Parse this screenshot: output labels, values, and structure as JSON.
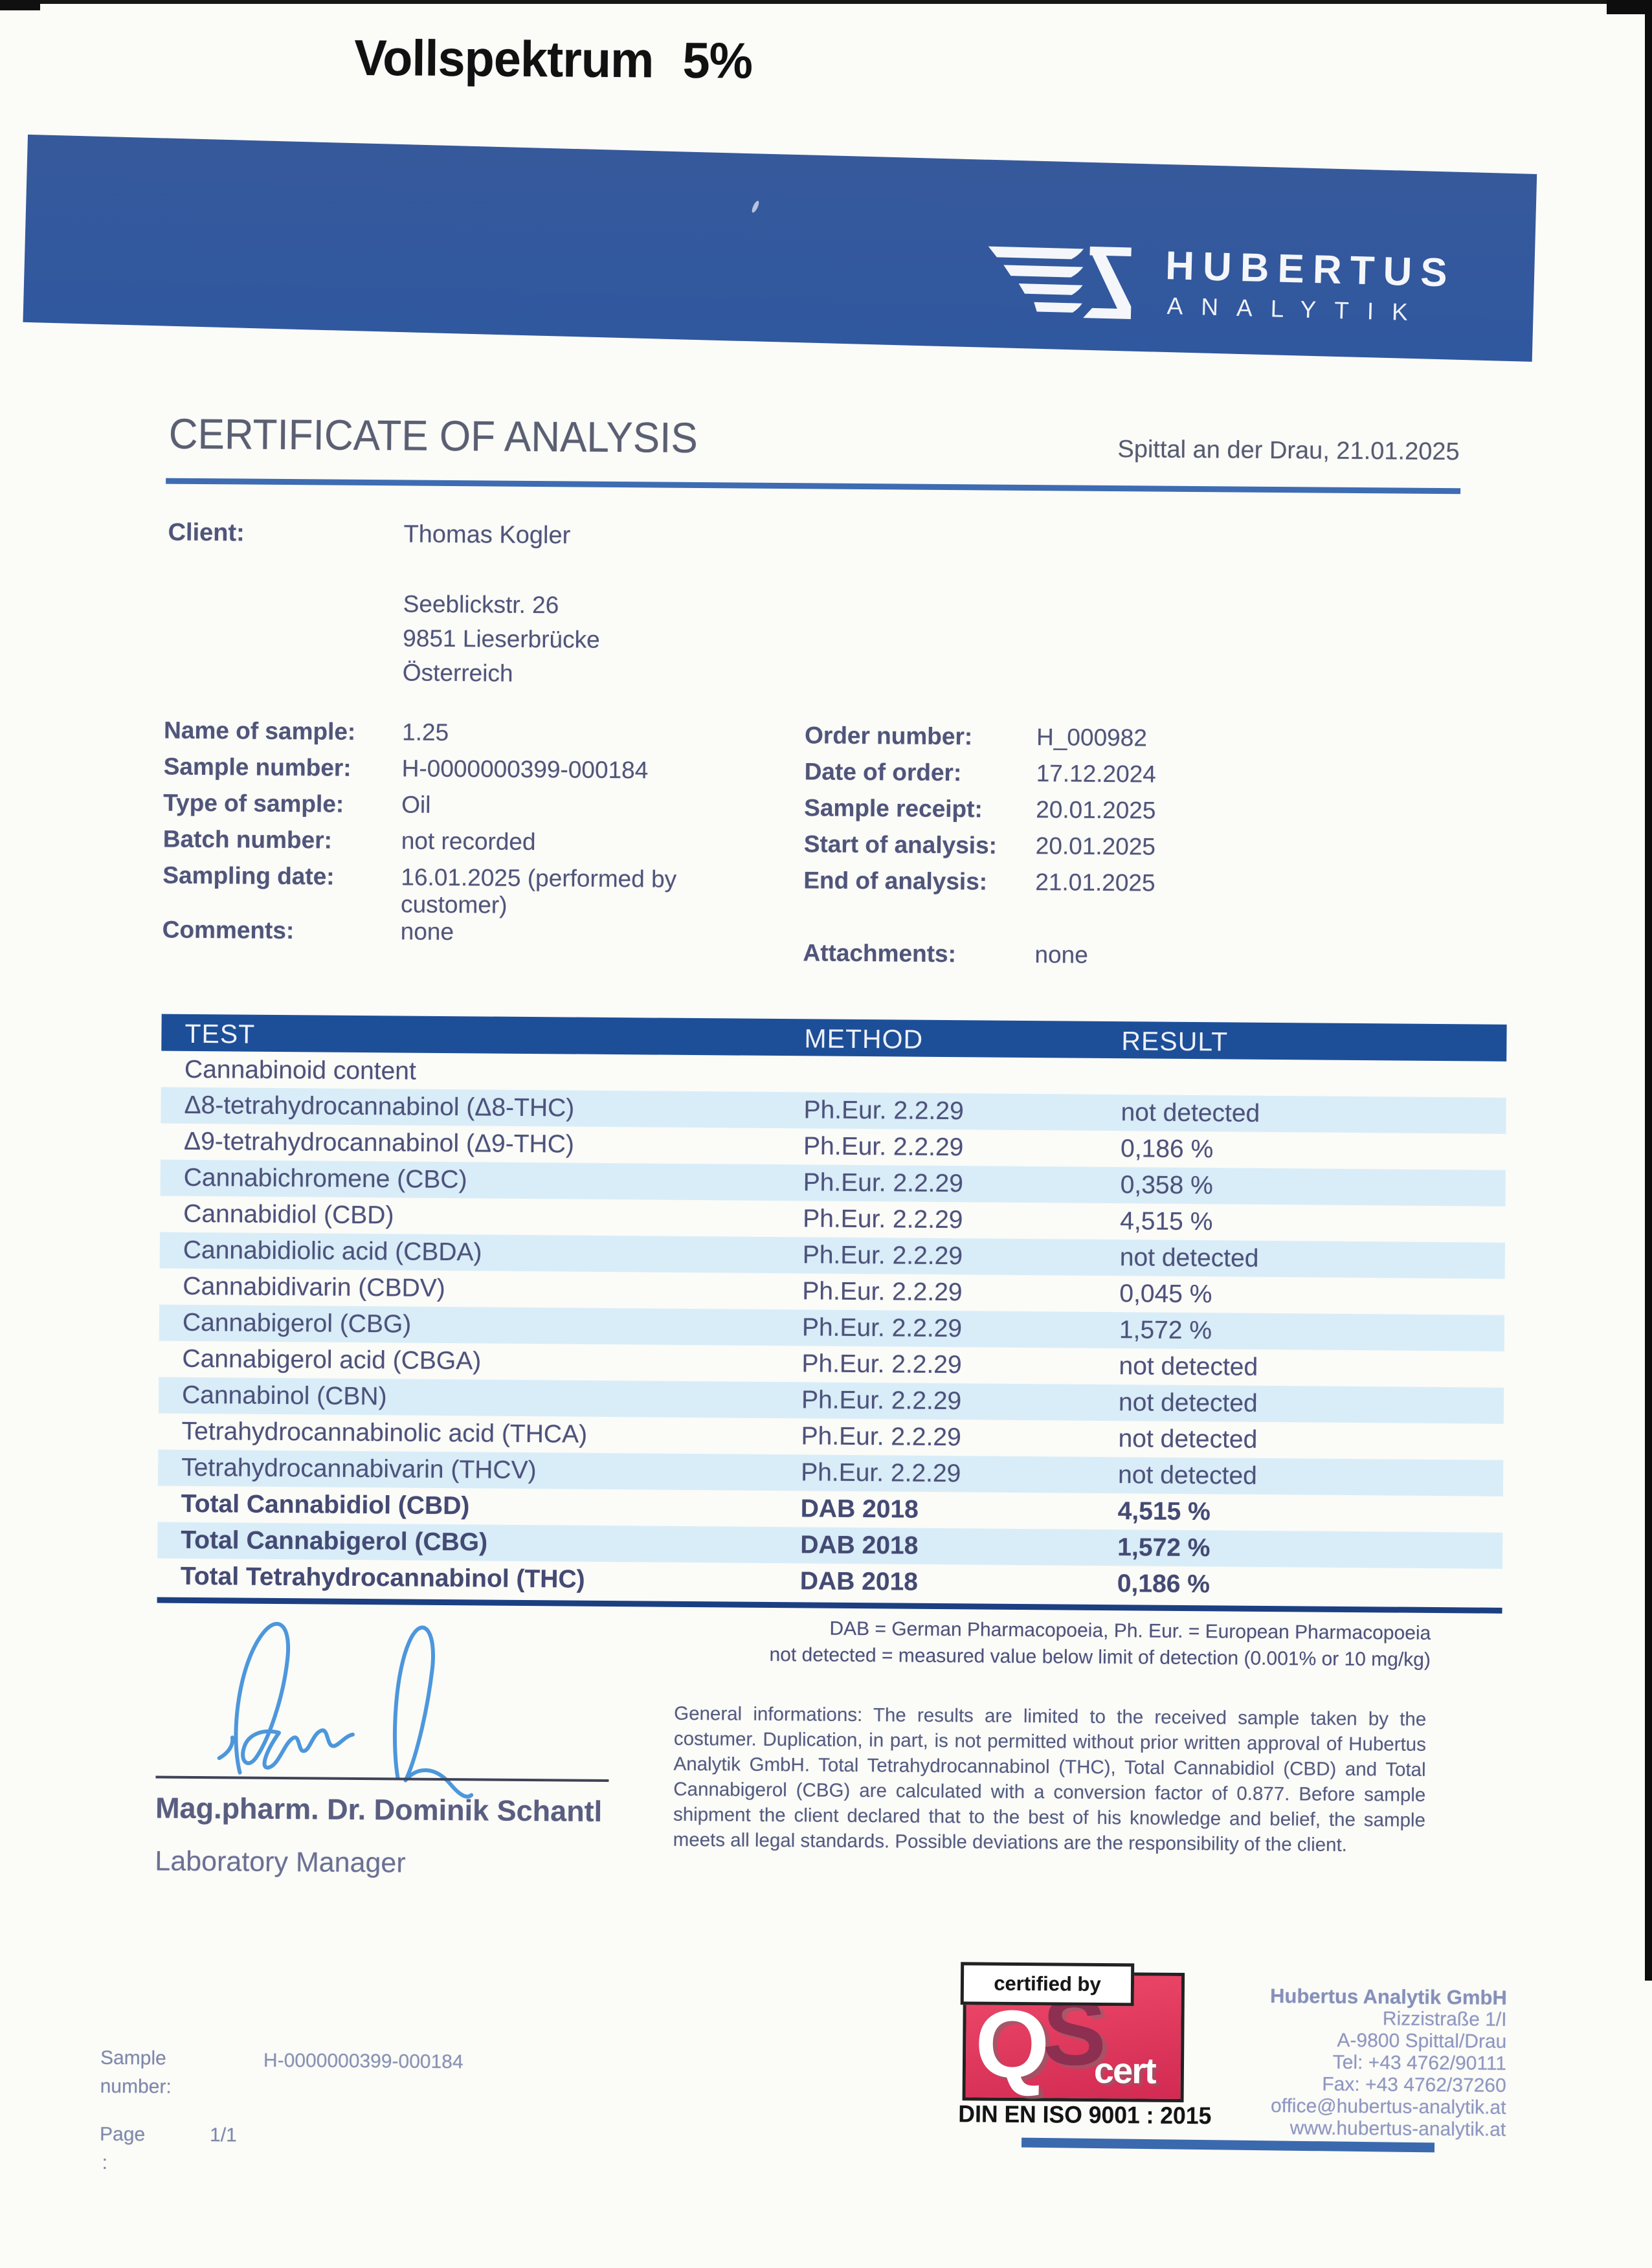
{
  "title": "Vollspektrum 5%",
  "logo": {
    "name": "HUBERTUS",
    "sub": "ANALYTIK"
  },
  "heading": {
    "text": "CERTIFICATE OF ANALYSIS",
    "place_date": "Spittal an der Drau, 21.01.2025"
  },
  "client": {
    "label": "Client:",
    "name": "Thomas Kogler",
    "address_lines": [
      "Seeblickstr. 26",
      "9851 Lieserbrücke",
      "Österreich"
    ]
  },
  "sample_info_left": [
    {
      "label": "Name of sample:",
      "value": "1.25"
    },
    {
      "label": "Sample number:",
      "value": "H-0000000399-000184"
    },
    {
      "label": "Type of sample:",
      "value": "Oil"
    },
    {
      "label": "Batch number:",
      "value": "not recorded"
    },
    {
      "label": "Sampling date:",
      "value": "16.01.2025 (performed by customer)"
    },
    {
      "label": "Comments:",
      "value": "none"
    }
  ],
  "sample_info_right": [
    {
      "label": "Order number:",
      "value": "H_000982"
    },
    {
      "label": "Date of order:",
      "value": "17.12.2024"
    },
    {
      "label": "Sample receipt:",
      "value": "20.01.2025"
    },
    {
      "label": "Start of analysis:",
      "value": "20.01.2025"
    },
    {
      "label": "End of analysis:",
      "value": "21.01.2025"
    },
    {
      "label": "Attachments:",
      "value": "none",
      "gap": true
    }
  ],
  "table": {
    "columns": [
      "TEST",
      "METHOD",
      "RESULT"
    ],
    "section": "Cannabinoid content",
    "rows": [
      {
        "test": "Δ8-tetrahydrocannabinol (Δ8-THC)",
        "method": "Ph.Eur. 2.2.29",
        "result": "not detected",
        "shaded": true,
        "bold": false
      },
      {
        "test": "Δ9-tetrahydrocannabinol (Δ9-THC)",
        "method": "Ph.Eur. 2.2.29",
        "result": "0,186 %",
        "shaded": false,
        "bold": false
      },
      {
        "test": "Cannabichromene (CBC)",
        "method": "Ph.Eur. 2.2.29",
        "result": "0,358 %",
        "shaded": true,
        "bold": false
      },
      {
        "test": "Cannabidiol (CBD)",
        "method": "Ph.Eur. 2.2.29",
        "result": "4,515 %",
        "shaded": false,
        "bold": false
      },
      {
        "test": "Cannabidiolic acid (CBDA)",
        "method": "Ph.Eur. 2.2.29",
        "result": "not detected",
        "shaded": true,
        "bold": false
      },
      {
        "test": "Cannabidivarin (CBDV)",
        "method": "Ph.Eur. 2.2.29",
        "result": "0,045 %",
        "shaded": false,
        "bold": false
      },
      {
        "test": "Cannabigerol (CBG)",
        "method": "Ph.Eur. 2.2.29",
        "result": "1,572 %",
        "shaded": true,
        "bold": false
      },
      {
        "test": "Cannabigerol acid (CBGA)",
        "method": "Ph.Eur. 2.2.29",
        "result": "not detected",
        "shaded": false,
        "bold": false
      },
      {
        "test": "Cannabinol (CBN)",
        "method": "Ph.Eur. 2.2.29",
        "result": "not detected",
        "shaded": true,
        "bold": false
      },
      {
        "test": "Tetrahydrocannabinolic acid (THCA)",
        "method": "Ph.Eur. 2.2.29",
        "result": "not detected",
        "shaded": false,
        "bold": false
      },
      {
        "test": "Tetrahydrocannabivarin (THCV)",
        "method": "Ph.Eur. 2.2.29",
        "result": "not detected",
        "shaded": true,
        "bold": false
      },
      {
        "test": "Total Cannabidiol (CBD)",
        "method": "DAB 2018",
        "result": "4,515 %",
        "shaded": false,
        "bold": true
      },
      {
        "test": "Total Cannabigerol (CBG)",
        "method": "DAB 2018",
        "result": "1,572 %",
        "shaded": true,
        "bold": true
      },
      {
        "test": "Total Tetrahydrocannabinol (THC)",
        "method": "DAB 2018",
        "result": "0,186 %",
        "shaded": false,
        "bold": true
      }
    ]
  },
  "footnote_lines": [
    "DAB = German Pharmacopoeia, Ph. Eur. = European Pharmacopoeia",
    "not detected = measured value below limit of detection (0.001% or 10 mg/kg)"
  ],
  "legal_text": "General informations: The results are limited to the received sample taken by the costumer. Duplication, in part, is not permitted without prior written approval of Hubertus Analytik GmbH. Total Tetrahydrocannabinol (THC), Total Cannabidiol (CBD) and Total Cannabigerol (CBG) are calculated with a conversion factor of 0.877. Before sample shipment the client declared that to the best of his knowledge and belief, the sample meets all legal standards. Possible deviations are the responsibility of the client.",
  "signature": {
    "name": "Mag.pharm. Dr. Dominik Schantl",
    "role": "Laboratory Manager"
  },
  "badge": {
    "certified_by": "certified by",
    "q": "Q",
    "s": "S",
    "cert": "cert",
    "iso": "DIN EN ISO 9001 : 2015"
  },
  "company_lines": [
    "Hubertus Analytik GmbH",
    "Rizzistraße 1/I",
    "A-9800 Spittal/Drau",
    "Tel: +43 4762/90111",
    "Fax: +43 4762/37260",
    "office@hubertus-analytik.at",
    "www.hubertus-analytik.at"
  ],
  "footer": {
    "sample_label_line1": "Sample",
    "sample_label_line2": "number:",
    "sample_value": "H-0000000399-000184",
    "page_label": "Page",
    "page_value": "1/1",
    "colon": ":"
  },
  "colors": {
    "band_blue": "#33599c",
    "table_header_blue": "#1d4f99",
    "row_shade": "#d9edf8",
    "heading_rule": "#3e6cb2",
    "table_rule": "#1c3f82",
    "qs_pink": "#e13a5e",
    "qs_s": "#8c2f50",
    "signature_ink": "#3e8ed9",
    "bottom_bar": "#3b69ae"
  }
}
